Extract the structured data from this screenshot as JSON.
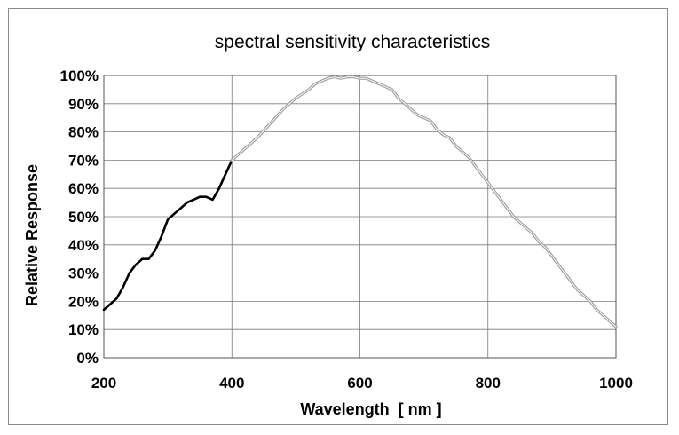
{
  "chart_data": {
    "type": "line",
    "title": "spectral sensitivity characteristics",
    "xlabel": "Wavelength  [ nm ]",
    "ylabel": "Relative Response",
    "xlim": [
      200,
      1000
    ],
    "ylim": [
      0,
      100
    ],
    "xticks": [
      200,
      400,
      600,
      800,
      1000
    ],
    "xtick_labels": [
      "200",
      "400",
      "600",
      "800",
      "1000"
    ],
    "yticks": [
      0,
      10,
      20,
      30,
      40,
      50,
      60,
      70,
      80,
      90,
      100
    ],
    "ytick_labels": [
      "0%",
      "10%",
      "20%",
      "30%",
      "40%",
      "50%",
      "60%",
      "70%",
      "80%",
      "90%",
      "100%"
    ],
    "grid": true,
    "legend": "none",
    "series": [
      {
        "color": "#000000",
        "style": "solid",
        "x": [
          200,
          210,
          220,
          230,
          240,
          250,
          260,
          270,
          280,
          290,
          300,
          310,
          320,
          330,
          340,
          350,
          360,
          370,
          380,
          390,
          400
        ],
        "y": [
          17,
          19,
          21,
          25,
          30,
          33,
          35,
          35,
          38,
          43,
          49,
          51,
          53,
          55,
          56,
          57,
          57,
          56,
          60,
          65,
          70
        ]
      },
      {
        "color": "#9a9a9a",
        "style": "double",
        "x": [
          400,
          420,
          440,
          460,
          480,
          500,
          520,
          530,
          540,
          550,
          560,
          570,
          580,
          590,
          600,
          610,
          620,
          630,
          640,
          650,
          660,
          670,
          680,
          690,
          700,
          710,
          720,
          730,
          740,
          750,
          760,
          770,
          780,
          790,
          800,
          810,
          820,
          830,
          840,
          850,
          860,
          870,
          880,
          890,
          900,
          910,
          920,
          930,
          940,
          950,
          960,
          970,
          980,
          990,
          1000
        ],
        "y": [
          70,
          74,
          78,
          83,
          88,
          92,
          95,
          97,
          98,
          99,
          99.5,
          99,
          99.5,
          99.5,
          99,
          99,
          98,
          97,
          96,
          95,
          92,
          90,
          88,
          86,
          85,
          84,
          81,
          79,
          78,
          75,
          73,
          71,
          68,
          65,
          62,
          59,
          56,
          53,
          50,
          48,
          46,
          44,
          41,
          39,
          36,
          33,
          30,
          27,
          24,
          22,
          20,
          17,
          15,
          13,
          11
        ]
      }
    ]
  }
}
